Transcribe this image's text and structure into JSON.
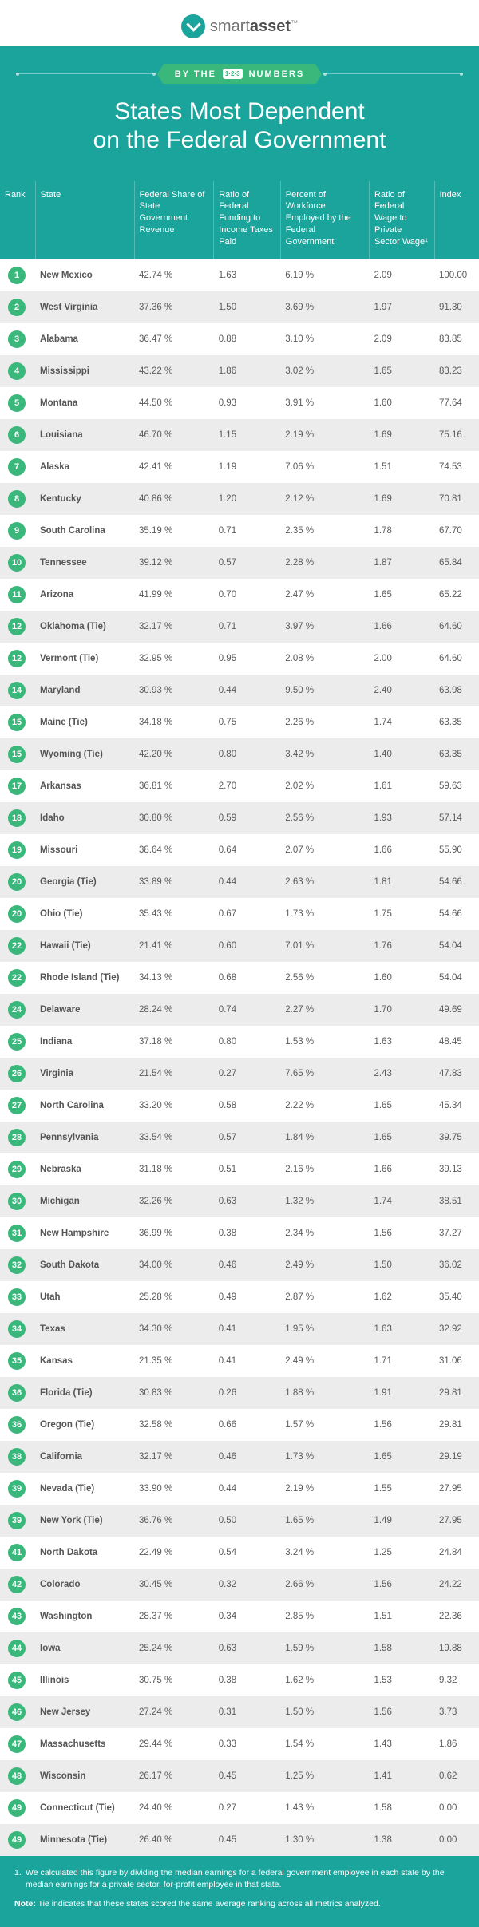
{
  "brand": {
    "name_part1": "smart",
    "name_part2": "asset",
    "tm": "™"
  },
  "badge": {
    "prefix": "BY THE",
    "icon_text": "1·2·3",
    "suffix": "NUMBERS"
  },
  "heading": {
    "line1": "States Most Dependent",
    "line2": "on the Federal Government"
  },
  "columns": {
    "rank": "Rank",
    "state": "State",
    "c1": "Federal Share of State Government Revenue",
    "c2": "Ratio of Federal Funding to Income Taxes Paid",
    "c3": "Percent of Workforce Employed by the Federal Government",
    "c4": "Ratio of Federal Wage to Private Sector Wage¹",
    "index": "Index"
  },
  "rows": [
    {
      "rank": "1",
      "state": "New Mexico",
      "c1": "42.74 %",
      "c2": "1.63",
      "c3": "6.19 %",
      "c4": "2.09",
      "idx": "100.00"
    },
    {
      "rank": "2",
      "state": "West Virginia",
      "c1": "37.36 %",
      "c2": "1.50",
      "c3": "3.69 %",
      "c4": "1.97",
      "idx": "91.30"
    },
    {
      "rank": "3",
      "state": "Alabama",
      "c1": "36.47 %",
      "c2": "0.88",
      "c3": "3.10 %",
      "c4": "2.09",
      "idx": "83.85"
    },
    {
      "rank": "4",
      "state": "Mississippi",
      "c1": "43.22 %",
      "c2": "1.86",
      "c3": "3.02 %",
      "c4": "1.65",
      "idx": "83.23"
    },
    {
      "rank": "5",
      "state": "Montana",
      "c1": "44.50 %",
      "c2": "0.93",
      "c3": "3.91 %",
      "c4": "1.60",
      "idx": "77.64"
    },
    {
      "rank": "6",
      "state": "Louisiana",
      "c1": "46.70 %",
      "c2": "1.15",
      "c3": "2.19 %",
      "c4": "1.69",
      "idx": "75.16"
    },
    {
      "rank": "7",
      "state": "Alaska",
      "c1": "42.41 %",
      "c2": "1.19",
      "c3": "7.06 %",
      "c4": "1.51",
      "idx": "74.53"
    },
    {
      "rank": "8",
      "state": "Kentucky",
      "c1": "40.86 %",
      "c2": "1.20",
      "c3": "2.12 %",
      "c4": "1.69",
      "idx": "70.81"
    },
    {
      "rank": "9",
      "state": "South Carolina",
      "c1": "35.19 %",
      "c2": "0.71",
      "c3": "2.35 %",
      "c4": "1.78",
      "idx": "67.70"
    },
    {
      "rank": "10",
      "state": "Tennessee",
      "c1": "39.12 %",
      "c2": "0.57",
      "c3": "2.28 %",
      "c4": "1.87",
      "idx": "65.84"
    },
    {
      "rank": "11",
      "state": "Arizona",
      "c1": "41.99 %",
      "c2": "0.70",
      "c3": "2.47 %",
      "c4": "1.65",
      "idx": "65.22"
    },
    {
      "rank": "12",
      "state": "Oklahoma (Tie)",
      "c1": "32.17 %",
      "c2": "0.71",
      "c3": "3.97 %",
      "c4": "1.66",
      "idx": "64.60"
    },
    {
      "rank": "12",
      "state": "Vermont (Tie)",
      "c1": "32.95 %",
      "c2": "0.95",
      "c3": "2.08 %",
      "c4": "2.00",
      "idx": "64.60"
    },
    {
      "rank": "14",
      "state": "Maryland",
      "c1": "30.93 %",
      "c2": "0.44",
      "c3": "9.50 %",
      "c4": "2.40",
      "idx": "63.98"
    },
    {
      "rank": "15",
      "state": "Maine (Tie)",
      "c1": "34.18 %",
      "c2": "0.75",
      "c3": "2.26 %",
      "c4": "1.74",
      "idx": "63.35"
    },
    {
      "rank": "15",
      "state": "Wyoming (Tie)",
      "c1": "42.20 %",
      "c2": "0.80",
      "c3": "3.42 %",
      "c4": "1.40",
      "idx": "63.35"
    },
    {
      "rank": "17",
      "state": "Arkansas",
      "c1": "36.81 %",
      "c2": "2.70",
      "c3": "2.02 %",
      "c4": "1.61",
      "idx": "59.63"
    },
    {
      "rank": "18",
      "state": "Idaho",
      "c1": "30.80 %",
      "c2": "0.59",
      "c3": "2.56 %",
      "c4": "1.93",
      "idx": "57.14"
    },
    {
      "rank": "19",
      "state": "Missouri",
      "c1": "38.64 %",
      "c2": "0.64",
      "c3": "2.07 %",
      "c4": "1.66",
      "idx": "55.90"
    },
    {
      "rank": "20",
      "state": "Georgia (Tie)",
      "c1": "33.89 %",
      "c2": "0.44",
      "c3": "2.63 %",
      "c4": "1.81",
      "idx": "54.66"
    },
    {
      "rank": "20",
      "state": "Ohio (Tie)",
      "c1": "35.43 %",
      "c2": "0.67",
      "c3": "1.73 %",
      "c4": "1.75",
      "idx": "54.66"
    },
    {
      "rank": "22",
      "state": "Hawaii (Tie)",
      "c1": "21.41 %",
      "c2": "0.60",
      "c3": "7.01 %",
      "c4": "1.76",
      "idx": "54.04"
    },
    {
      "rank": "22",
      "state": "Rhode Island (Tie)",
      "c1": "34.13 %",
      "c2": "0.68",
      "c3": "2.56 %",
      "c4": "1.60",
      "idx": "54.04"
    },
    {
      "rank": "24",
      "state": "Delaware",
      "c1": "28.24 %",
      "c2": "0.74",
      "c3": "2.27 %",
      "c4": "1.70",
      "idx": "49.69"
    },
    {
      "rank": "25",
      "state": "Indiana",
      "c1": "37.18 %",
      "c2": "0.80",
      "c3": "1.53 %",
      "c4": "1.63",
      "idx": "48.45"
    },
    {
      "rank": "26",
      "state": "Virginia",
      "c1": "21.54 %",
      "c2": "0.27",
      "c3": "7.65 %",
      "c4": "2.43",
      "idx": "47.83"
    },
    {
      "rank": "27",
      "state": "North Carolina",
      "c1": "33.20 %",
      "c2": "0.58",
      "c3": "2.22 %",
      "c4": "1.65",
      "idx": "45.34"
    },
    {
      "rank": "28",
      "state": "Pennsylvania",
      "c1": "33.54 %",
      "c2": "0.57",
      "c3": "1.84 %",
      "c4": "1.65",
      "idx": "39.75"
    },
    {
      "rank": "29",
      "state": "Nebraska",
      "c1": "31.18 %",
      "c2": "0.51",
      "c3": "2.16 %",
      "c4": "1.66",
      "idx": "39.13"
    },
    {
      "rank": "30",
      "state": "Michigan",
      "c1": "32.26 %",
      "c2": "0.63",
      "c3": "1.32 %",
      "c4": "1.74",
      "idx": "38.51"
    },
    {
      "rank": "31",
      "state": "New Hampshire",
      "c1": "36.99 %",
      "c2": "0.38",
      "c3": "2.34 %",
      "c4": "1.56",
      "idx": "37.27"
    },
    {
      "rank": "32",
      "state": "South Dakota",
      "c1": "34.00 %",
      "c2": "0.46",
      "c3": "2.49 %",
      "c4": "1.50",
      "idx": "36.02"
    },
    {
      "rank": "33",
      "state": "Utah",
      "c1": "25.28 %",
      "c2": "0.49",
      "c3": "2.87 %",
      "c4": "1.62",
      "idx": "35.40"
    },
    {
      "rank": "34",
      "state": "Texas",
      "c1": "34.30 %",
      "c2": "0.41",
      "c3": "1.95 %",
      "c4": "1.63",
      "idx": "32.92"
    },
    {
      "rank": "35",
      "state": "Kansas",
      "c1": "21.35 %",
      "c2": "0.41",
      "c3": "2.49 %",
      "c4": "1.71",
      "idx": "31.06"
    },
    {
      "rank": "36",
      "state": "Florida (Tie)",
      "c1": "30.83 %",
      "c2": "0.26",
      "c3": "1.88 %",
      "c4": "1.91",
      "idx": "29.81"
    },
    {
      "rank": "36",
      "state": "Oregon (Tie)",
      "c1": "32.58 %",
      "c2": "0.66",
      "c3": "1.57 %",
      "c4": "1.56",
      "idx": "29.81"
    },
    {
      "rank": "38",
      "state": "California",
      "c1": "32.17 %",
      "c2": "0.46",
      "c3": "1.73 %",
      "c4": "1.65",
      "idx": "29.19"
    },
    {
      "rank": "39",
      "state": "Nevada (Tie)",
      "c1": "33.90 %",
      "c2": "0.44",
      "c3": "2.19 %",
      "c4": "1.55",
      "idx": "27.95"
    },
    {
      "rank": "39",
      "state": "New York (Tie)",
      "c1": "36.76 %",
      "c2": "0.50",
      "c3": "1.65 %",
      "c4": "1.49",
      "idx": "27.95"
    },
    {
      "rank": "41",
      "state": "North Dakota",
      "c1": "22.49 %",
      "c2": "0.54",
      "c3": "3.24 %",
      "c4": "1.25",
      "idx": "24.84"
    },
    {
      "rank": "42",
      "state": "Colorado",
      "c1": "30.45 %",
      "c2": "0.32",
      "c3": "2.66 %",
      "c4": "1.56",
      "idx": "24.22"
    },
    {
      "rank": "43",
      "state": "Washington",
      "c1": "28.37 %",
      "c2": "0.34",
      "c3": "2.85 %",
      "c4": "1.51",
      "idx": "22.36"
    },
    {
      "rank": "44",
      "state": "Iowa",
      "c1": "25.24 %",
      "c2": "0.63",
      "c3": "1.59 %",
      "c4": "1.58",
      "idx": "19.88"
    },
    {
      "rank": "45",
      "state": "Illinois",
      "c1": "30.75 %",
      "c2": "0.38",
      "c3": "1.62 %",
      "c4": "1.53",
      "idx": "9.32"
    },
    {
      "rank": "46",
      "state": "New Jersey",
      "c1": "27.24 %",
      "c2": "0.31",
      "c3": "1.50 %",
      "c4": "1.56",
      "idx": "3.73"
    },
    {
      "rank": "47",
      "state": "Massachusetts",
      "c1": "29.44 %",
      "c2": "0.33",
      "c3": "1.54 %",
      "c4": "1.43",
      "idx": "1.86"
    },
    {
      "rank": "48",
      "state": "Wisconsin",
      "c1": "26.17 %",
      "c2": "0.45",
      "c3": "1.25 %",
      "c4": "1.41",
      "idx": "0.62"
    },
    {
      "rank": "49",
      "state": "Connecticut (Tie)",
      "c1": "24.40 %",
      "c2": "0.27",
      "c3": "1.43 %",
      "c4": "1.58",
      "idx": "0.00"
    },
    {
      "rank": "49",
      "state": "Minnesota (Tie)",
      "c1": "26.40 %",
      "c2": "0.45",
      "c3": "1.30 %",
      "c4": "1.38",
      "idx": "0.00"
    }
  ],
  "footnote": "We calculated this figure by dividing the median earnings for a federal government employee in each state by the median earnings for a private sector, for-profit employee in that state.",
  "note_label": "Note:",
  "note_text": "Tie indicates that these states scored the same average ranking across all metrics analyzed."
}
